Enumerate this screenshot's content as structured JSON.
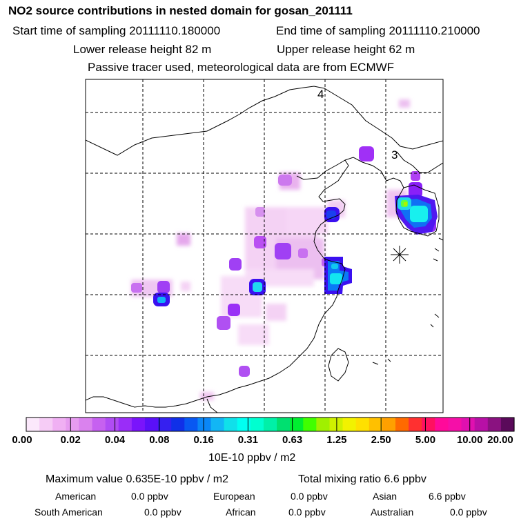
{
  "title": "NO2 source contributions in nested domain for gosan_201111",
  "sampling": {
    "start": "Start time of sampling 20111110.180000",
    "end": "End time of sampling 20111110.210000"
  },
  "release": {
    "lower": "Lower release height   82 m",
    "upper": "Upper release height   62 m"
  },
  "note": "Passive tracer used, meteorological data are from ECMWF",
  "map_labels": {
    "day4": "4",
    "day3": "3"
  },
  "colorbar": {
    "colors": [
      "#fbe8fb",
      "#f6ccf6",
      "#f0b0f3",
      "#e79cf0",
      "#da82ee",
      "#c661f0",
      "#b04cf4",
      "#9a2df8",
      "#7a14fb",
      "#5a10f8",
      "#3520f0",
      "#1030e8",
      "#0858f2",
      "#0a86f7",
      "#12b6f5",
      "#10e0ea",
      "#00fff2",
      "#00ffd0",
      "#00f0a8",
      "#00e070",
      "#00ee30",
      "#40ff00",
      "#a0f000",
      "#cff000",
      "#f2f200",
      "#ffe000",
      "#ffc000",
      "#ffa000",
      "#ff6a00",
      "#ff3030",
      "#ff1060",
      "#ff0a9a",
      "#f50fa8",
      "#e010b0",
      "#b810a6",
      "#8a1280",
      "#5a0a5a"
    ],
    "ticks": [
      "0.00",
      "0.02",
      "0.04",
      "0.08",
      "0.16",
      "0.31",
      "0.63",
      "1.25",
      "2.50",
      "5.00",
      "10.00",
      "20.00"
    ],
    "units": "10E-10 ppbv / m2"
  },
  "stats": {
    "max_value": "Maximum value  0.635E-10 ppbv / m2",
    "total_mixing": "Total mixing ratio       6.6 ppbv",
    "american": {
      "label": "American",
      "value": "0.0 ppbv"
    },
    "european": {
      "label": "European",
      "value": "0.0 ppbv"
    },
    "asian": {
      "label": "Asian",
      "value": "6.6 ppbv"
    },
    "south_american": {
      "label": "South American",
      "value": "0.0 ppbv"
    },
    "african": {
      "label": "African",
      "value": "0.0 ppbv"
    },
    "australian": {
      "label": "Australian",
      "value": "0.0 ppbv"
    }
  }
}
